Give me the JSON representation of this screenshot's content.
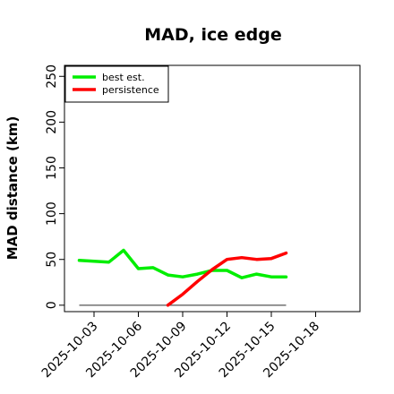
{
  "chart_data": {
    "type": "line",
    "title": "MAD, ice edge",
    "xlabel": "",
    "ylabel": "MAD distance (km)",
    "x_tick_labels": [
      "2025-10-03",
      "2025-10-06",
      "2025-10-09",
      "2025-10-12",
      "2025-10-15",
      "2025-10-18"
    ],
    "y_ticks": [
      0,
      50,
      100,
      150,
      200,
      250
    ],
    "xlim": [
      "2025-10-01",
      "2025-10-21"
    ],
    "ylim": [
      -7,
      262
    ],
    "grid": false,
    "legend_position": "top-left",
    "series": [
      {
        "name": "best est.",
        "color": "#00ee00",
        "x": [
          "2025-10-02",
          "2025-10-03",
          "2025-10-04",
          "2025-10-05",
          "2025-10-06",
          "2025-10-07",
          "2025-10-08",
          "2025-10-09",
          "2025-10-10",
          "2025-10-11",
          "2025-10-12",
          "2025-10-13",
          "2025-10-14",
          "2025-10-15",
          "2025-10-16"
        ],
        "values": [
          49,
          48,
          47,
          60,
          40,
          41,
          33,
          31,
          34,
          38,
          38,
          30,
          34,
          31,
          31
        ]
      },
      {
        "name": "persistence",
        "color": "#ff0000",
        "x": [
          "2025-10-08",
          "2025-10-09",
          "2025-10-10",
          "2025-10-11",
          "2025-10-12",
          "2025-10-13",
          "2025-10-14",
          "2025-10-15",
          "2025-10-16"
        ],
        "values": [
          0,
          12,
          26,
          39,
          50,
          52,
          50,
          51,
          57
        ]
      }
    ],
    "reference_line": {
      "color": "#555555",
      "x": [
        "2025-10-02",
        "2025-10-16"
      ],
      "values": [
        0,
        0
      ]
    }
  }
}
